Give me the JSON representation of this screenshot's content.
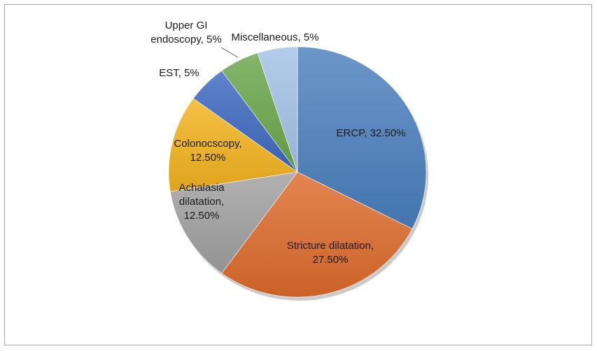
{
  "chart_data": {
    "type": "pie",
    "title": "",
    "legend": "none",
    "slices": [
      {
        "name": "ERCP",
        "value": 32.5,
        "label": [
          "ERCP, 32.50%"
        ],
        "color": "#4a7fbd"
      },
      {
        "name": "Stricture dilatation",
        "value": 27.5,
        "label": [
          "Stricture dilatation,",
          "27.50%"
        ],
        "color": "#dd6a2c"
      },
      {
        "name": "Achalasia dilatation",
        "value": 12.5,
        "label": [
          "Achalasia",
          "dilatation,",
          "12.50%"
        ],
        "color": "#a0a0a0"
      },
      {
        "name": "Colonocscopy",
        "value": 12.5,
        "label": [
          "Colonocscopy,",
          "12.50%"
        ],
        "color": "#f2b21c"
      },
      {
        "name": "EST",
        "value": 5,
        "label": [
          "EST, 5%"
        ],
        "color": "#3d68c0"
      },
      {
        "name": "Upper GI endoscopy",
        "value": 5,
        "label": [
          "Upper GI",
          "endoscopy, 5%"
        ],
        "color": "#69a64a"
      },
      {
        "name": "Miscellaneous",
        "value": 5,
        "label": [
          "Miscellaneous, 5%"
        ],
        "color": "#a3c1e6"
      }
    ]
  }
}
